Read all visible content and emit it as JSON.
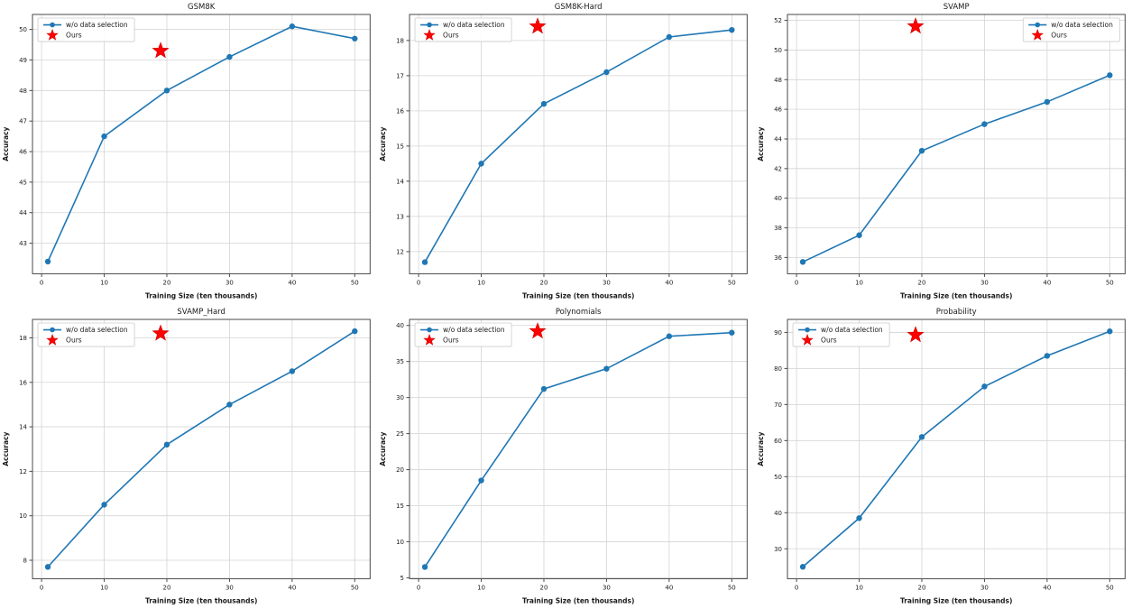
{
  "figure": {
    "background": "#ffffff",
    "line_color": "#1f77b4",
    "marker_color": "#1f77b4",
    "star_color": "#ff0000",
    "grid_color": "#d4d4d4",
    "spine_color": "#4a4a4a",
    "text_color": "#1a1a1a",
    "legend_border_color": "#cccccc",
    "legend_labels": {
      "series": "w/o data selection",
      "ours": "Ours"
    }
  },
  "chart_data": [
    {
      "type": "line",
      "title": "GSM8K",
      "xlabel": "Training Size (ten thousands)",
      "ylabel": "Accuracy",
      "x": [
        1,
        10,
        20,
        30,
        40,
        50
      ],
      "series": [
        {
          "name": "w/o data selection",
          "values": [
            42.4,
            46.5,
            48.0,
            49.1,
            50.1,
            49.7
          ]
        }
      ],
      "ours_point": {
        "name": "Ours",
        "x": 19,
        "y": 49.3
      },
      "xlim": [
        -1.45,
        52.45
      ],
      "ylim": [
        42.0,
        50.49
      ],
      "xticks": [
        0,
        10,
        20,
        30,
        40,
        50
      ],
      "yticks": [
        43,
        44,
        45,
        46,
        47,
        48,
        49,
        50
      ],
      "legend_position": "upper-left",
      "grid": true
    },
    {
      "type": "line",
      "title": "GSM8K-Hard",
      "xlabel": "Training Size (ten thousands)",
      "ylabel": "Accuracy",
      "x": [
        1,
        10,
        20,
        30,
        40,
        50
      ],
      "series": [
        {
          "name": "w/o data selection",
          "values": [
            11.7,
            14.5,
            16.2,
            17.1,
            18.1,
            18.3
          ]
        }
      ],
      "ours_point": {
        "name": "Ours",
        "x": 19,
        "y": 18.4
      },
      "xlim": [
        -1.45,
        52.45
      ],
      "ylim": [
        11.37,
        18.74
      ],
      "xticks": [
        0,
        10,
        20,
        30,
        40,
        50
      ],
      "yticks": [
        12,
        13,
        14,
        15,
        16,
        17,
        18
      ],
      "legend_position": "upper-left",
      "grid": true
    },
    {
      "type": "line",
      "title": "SVAMP",
      "xlabel": "Training Size (ten thousands)",
      "ylabel": "Accuracy",
      "x": [
        1,
        10,
        20,
        30,
        40,
        50
      ],
      "series": [
        {
          "name": "w/o data selection",
          "values": [
            35.7,
            37.5,
            43.2,
            45.0,
            46.5,
            48.3
          ]
        }
      ],
      "ours_point": {
        "name": "Ours",
        "x": 19,
        "y": 51.6
      },
      "xlim": [
        -1.45,
        52.45
      ],
      "ylim": [
        34.9,
        52.4
      ],
      "xticks": [
        0,
        10,
        20,
        30,
        40,
        50
      ],
      "yticks": [
        36,
        38,
        40,
        42,
        44,
        46,
        48,
        50,
        52
      ],
      "legend_position": "upper-right",
      "grid": true
    },
    {
      "type": "line",
      "title": "SVAMP_Hard",
      "xlabel": "Training Size (ten thousands)",
      "ylabel": "Accuracy",
      "x": [
        1,
        10,
        20,
        30,
        40,
        50
      ],
      "series": [
        {
          "name": "w/o data selection",
          "values": [
            7.7,
            10.5,
            13.2,
            15.0,
            16.5,
            18.3
          ]
        }
      ],
      "ours_point": {
        "name": "Ours",
        "x": 19,
        "y": 18.2
      },
      "xlim": [
        -1.45,
        52.45
      ],
      "ylim": [
        7.17,
        18.83
      ],
      "xticks": [
        0,
        10,
        20,
        30,
        40,
        50
      ],
      "yticks": [
        8,
        10,
        12,
        14,
        16,
        18
      ],
      "legend_position": "upper-left",
      "grid": true
    },
    {
      "type": "line",
      "title": "Polynomials",
      "xlabel": "Training Size (ten thousands)",
      "ylabel": "Accuracy",
      "x": [
        1,
        10,
        20,
        30,
        40,
        50
      ],
      "series": [
        {
          "name": "w/o data selection",
          "values": [
            6.5,
            18.5,
            31.2,
            34.0,
            38.5,
            39.0
          ]
        }
      ],
      "ours_point": {
        "name": "Ours",
        "x": 19,
        "y": 39.2
      },
      "xlim": [
        -1.45,
        52.45
      ],
      "ylim": [
        4.87,
        40.84
      ],
      "xticks": [
        0,
        10,
        20,
        30,
        40,
        50
      ],
      "yticks": [
        5,
        10,
        15,
        20,
        25,
        30,
        35,
        40
      ],
      "legend_position": "upper-left",
      "grid": true
    },
    {
      "type": "line",
      "title": "Probability",
      "xlabel": "Training Size (ten thousands)",
      "ylabel": "Accuracy",
      "x": [
        1,
        10,
        20,
        30,
        40,
        50
      ],
      "series": [
        {
          "name": "w/o data selection",
          "values": [
            25.0,
            38.5,
            61.0,
            75.0,
            83.5,
            90.3
          ]
        }
      ],
      "ours_point": {
        "name": "Ours",
        "x": 19,
        "y": 89.3
      },
      "xlim": [
        -1.45,
        52.45
      ],
      "ylim": [
        21.7,
        93.6
      ],
      "xticks": [
        0,
        10,
        20,
        30,
        40,
        50
      ],
      "yticks": [
        30,
        40,
        50,
        60,
        70,
        80,
        90
      ],
      "legend_position": "upper-left",
      "grid": true
    }
  ]
}
